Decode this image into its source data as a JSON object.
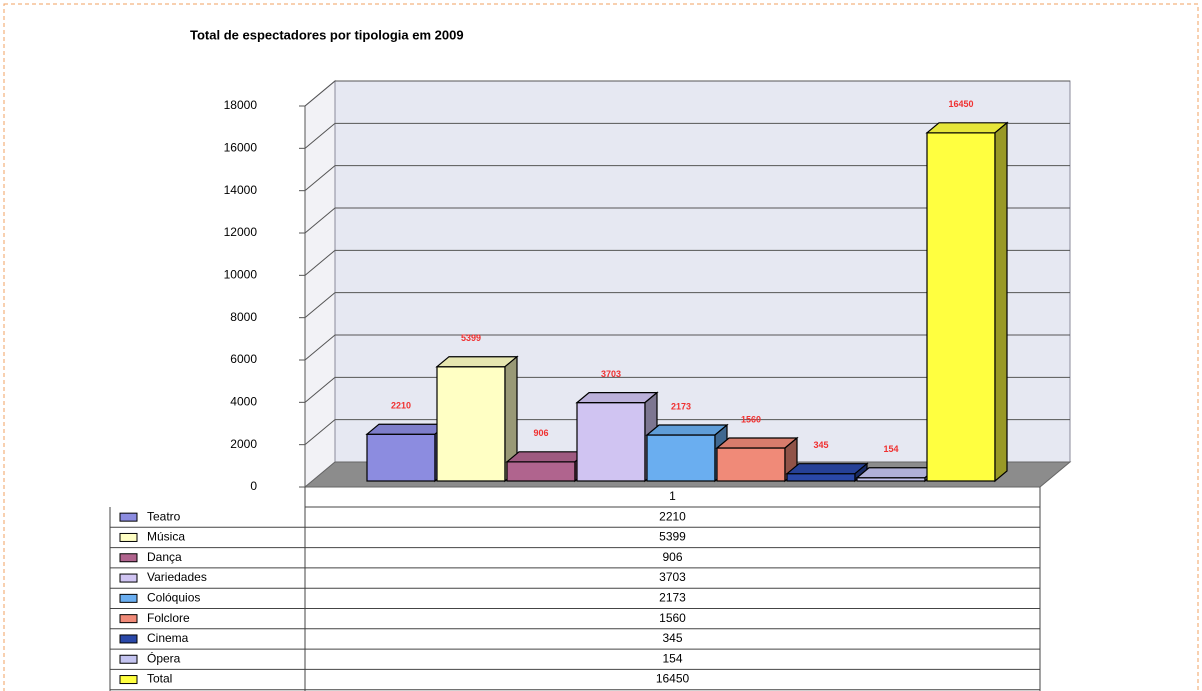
{
  "chart_data": {
    "type": "bar",
    "title": "Total de espectadores por tipologia em 2009",
    "categories": [
      "1"
    ],
    "series": [
      {
        "name": "Teatro",
        "color": "#8c8ce0",
        "values": [
          2210
        ]
      },
      {
        "name": "Música",
        "color": "#ffffc4",
        "values": [
          5399
        ]
      },
      {
        "name": "Dança",
        "color": "#b0648e",
        "values": [
          906
        ]
      },
      {
        "name": "Variedades",
        "color": "#d0c4f2",
        "values": [
          3703
        ]
      },
      {
        "name": "Colóquios",
        "color": "#6aaef0",
        "values": [
          2173
        ]
      },
      {
        "name": "Folclore",
        "color": "#f08a78",
        "values": [
          1560
        ]
      },
      {
        "name": "Cinema",
        "color": "#2a48a8",
        "values": [
          345
        ]
      },
      {
        "name": "Ópera",
        "color": "#c4c4f0",
        "values": [
          154
        ]
      },
      {
        "name": "Total",
        "color": "#ffff40",
        "values": [
          16450
        ]
      }
    ],
    "ylim": [
      0,
      18000
    ],
    "yticks": [
      0,
      2000,
      4000,
      6000,
      8000,
      10000,
      12000,
      14000,
      16000,
      18000
    ],
    "grid": true
  }
}
